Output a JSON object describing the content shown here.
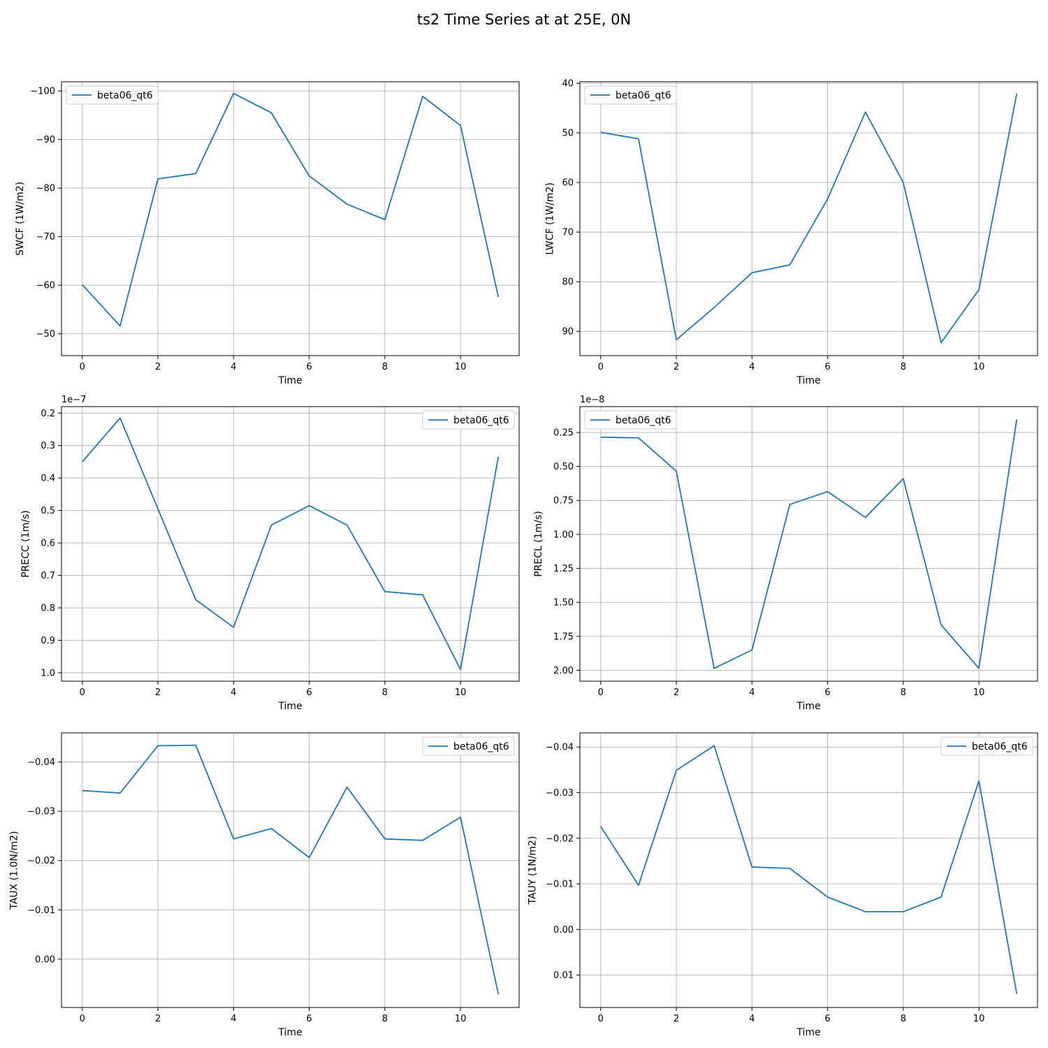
{
  "figure": {
    "title": "ts2 Time Series at at 25E, 0N",
    "line_color": "#1f77b4",
    "grid_color": "#b0b0b0"
  },
  "chart_data": [
    {
      "type": "line",
      "xlabel": "Time",
      "ylabel": "SWCF (1W/m2)",
      "x": [
        0,
        1,
        2,
        3,
        4,
        5,
        6,
        7,
        8,
        9,
        10,
        11
      ],
      "series": [
        {
          "name": "beta06_qt6",
          "values": [
            -60.1,
            -51.6,
            -81.9,
            -83.0,
            -99.5,
            -95.5,
            -82.5,
            -76.7,
            -73.5,
            -98.9,
            -92.9,
            -57.6
          ]
        }
      ],
      "xlim": [
        -0.55,
        11.55
      ],
      "ylim": [
        -45.5,
        -101.9
      ],
      "y_inverted": true,
      "xticks": [
        0,
        2,
        4,
        6,
        8,
        10
      ],
      "xtick_labels": [
        "0",
        "2",
        "4",
        "6",
        "8",
        "10"
      ],
      "yticks": [
        -100,
        -90,
        -80,
        -70,
        -60,
        -50
      ],
      "ytick_labels": [
        "−100",
        "−90",
        "−80",
        "−70",
        "−60",
        "−50"
      ],
      "offset_text": "",
      "legend_loc": "upper left",
      "grid": true
    },
    {
      "type": "line",
      "xlabel": "Time",
      "ylabel": "LWCF (1W/m2)",
      "x": [
        0,
        1,
        2,
        3,
        4,
        5,
        6,
        7,
        8,
        9,
        10,
        11
      ],
      "series": [
        {
          "name": "beta06_qt6",
          "values": [
            49.9,
            51.2,
            91.7,
            85.2,
            78.2,
            76.6,
            63.3,
            45.8,
            60.0,
            92.3,
            81.6,
            42.1
          ]
        }
      ],
      "xlim": [
        -0.55,
        11.55
      ],
      "ylim": [
        94.9,
        39.7
      ],
      "y_inverted": true,
      "xticks": [
        0,
        2,
        4,
        6,
        8,
        10
      ],
      "xtick_labels": [
        "0",
        "2",
        "4",
        "6",
        "8",
        "10"
      ],
      "yticks": [
        40,
        50,
        60,
        70,
        80,
        90
      ],
      "ytick_labels": [
        "40",
        "50",
        "60",
        "70",
        "80",
        "90"
      ],
      "offset_text": "",
      "legend_loc": "upper left",
      "grid": true
    },
    {
      "type": "line",
      "xlabel": "Time",
      "ylabel": "PRECC (1m/s)",
      "x": [
        0,
        1,
        2,
        3,
        4,
        5,
        6,
        7,
        8,
        9,
        10,
        11
      ],
      "series": [
        {
          "name": "beta06_qt6",
          "values": [
            0.35,
            0.215,
            0.495,
            0.775,
            0.86,
            0.545,
            0.485,
            0.545,
            0.75,
            0.76,
            0.99,
            0.335
          ]
        }
      ],
      "xlim": [
        -0.55,
        11.55
      ],
      "ylim": [
        1.026,
        0.18
      ],
      "y_inverted": true,
      "xticks": [
        0,
        2,
        4,
        6,
        8,
        10
      ],
      "xtick_labels": [
        "0",
        "2",
        "4",
        "6",
        "8",
        "10"
      ],
      "yticks": [
        0.2,
        0.3,
        0.4,
        0.5,
        0.6,
        0.7,
        0.8,
        0.9,
        1.0
      ],
      "ytick_labels": [
        "0.2",
        "0.3",
        "0.4",
        "0.5",
        "0.6",
        "0.7",
        "0.8",
        "0.9",
        "1.0"
      ],
      "offset_text": "1e−7",
      "legend_loc": "upper right",
      "grid": true
    },
    {
      "type": "line",
      "xlabel": "Time",
      "ylabel": "PRECL (1m/s)",
      "x": [
        0,
        1,
        2,
        3,
        4,
        5,
        6,
        7,
        8,
        9,
        10,
        11
      ],
      "series": [
        {
          "name": "beta06_qt6",
          "values": [
            0.285,
            0.29,
            0.535,
            1.985,
            1.85,
            0.78,
            0.685,
            0.875,
            0.59,
            1.665,
            1.985,
            0.155
          ]
        }
      ],
      "xlim": [
        -0.55,
        11.55
      ],
      "ylim": [
        2.08,
        0.06
      ],
      "y_inverted": true,
      "xticks": [
        0,
        2,
        4,
        6,
        8,
        10
      ],
      "xtick_labels": [
        "0",
        "2",
        "4",
        "6",
        "8",
        "10"
      ],
      "yticks": [
        0.25,
        0.5,
        0.75,
        1.0,
        1.25,
        1.5,
        1.75,
        2.0
      ],
      "ytick_labels": [
        "0.25",
        "0.50",
        "0.75",
        "1.00",
        "1.25",
        "1.50",
        "1.75",
        "2.00"
      ],
      "offset_text": "1e−8",
      "legend_loc": "upper left",
      "grid": true
    },
    {
      "type": "line",
      "xlabel": "Time",
      "ylabel": "TAUX (1.0N/m2)",
      "x": [
        0,
        1,
        2,
        3,
        4,
        5,
        6,
        7,
        8,
        9,
        10,
        11
      ],
      "series": [
        {
          "name": "beta06_qt6",
          "values": [
            -0.0342,
            -0.0337,
            -0.0433,
            -0.0434,
            -0.0244,
            -0.0265,
            -0.0206,
            -0.0349,
            -0.0244,
            -0.0241,
            -0.0288,
            0.0071
          ]
        }
      ],
      "xlim": [
        -0.55,
        11.55
      ],
      "ylim": [
        0.0098,
        -0.0459
      ],
      "y_inverted": true,
      "xticks": [
        0,
        2,
        4,
        6,
        8,
        10
      ],
      "xtick_labels": [
        "0",
        "2",
        "4",
        "6",
        "8",
        "10"
      ],
      "yticks": [
        -0.04,
        -0.03,
        -0.02,
        -0.01,
        0.0
      ],
      "ytick_labels": [
        "−0.04",
        "−0.03",
        "−0.02",
        "−0.01",
        "0.00"
      ],
      "offset_text": "",
      "legend_loc": "upper right",
      "grid": true
    },
    {
      "type": "line",
      "xlabel": "Time",
      "ylabel": "TAUY (1N/m2)",
      "x": [
        0,
        1,
        2,
        3,
        4,
        5,
        6,
        7,
        8,
        9,
        10,
        11
      ],
      "series": [
        {
          "name": "beta06_qt6",
          "values": [
            -0.0226,
            -0.0097,
            -0.0349,
            -0.0403,
            -0.0137,
            -0.0134,
            -0.0071,
            -0.0039,
            -0.0039,
            -0.0071,
            -0.0326,
            0.0141
          ]
        }
      ],
      "xlim": [
        -0.55,
        11.55
      ],
      "ylim": [
        0.0171,
        -0.0431
      ],
      "y_inverted": true,
      "xticks": [
        0,
        2,
        4,
        6,
        8,
        10
      ],
      "xtick_labels": [
        "0",
        "2",
        "4",
        "6",
        "8",
        "10"
      ],
      "yticks": [
        -0.04,
        -0.03,
        -0.02,
        -0.01,
        0.0,
        0.01
      ],
      "ytick_labels": [
        "−0.04",
        "−0.03",
        "−0.02",
        "−0.01",
        "0.00",
        "0.01"
      ],
      "offset_text": "",
      "legend_loc": "upper right",
      "grid": true
    }
  ]
}
